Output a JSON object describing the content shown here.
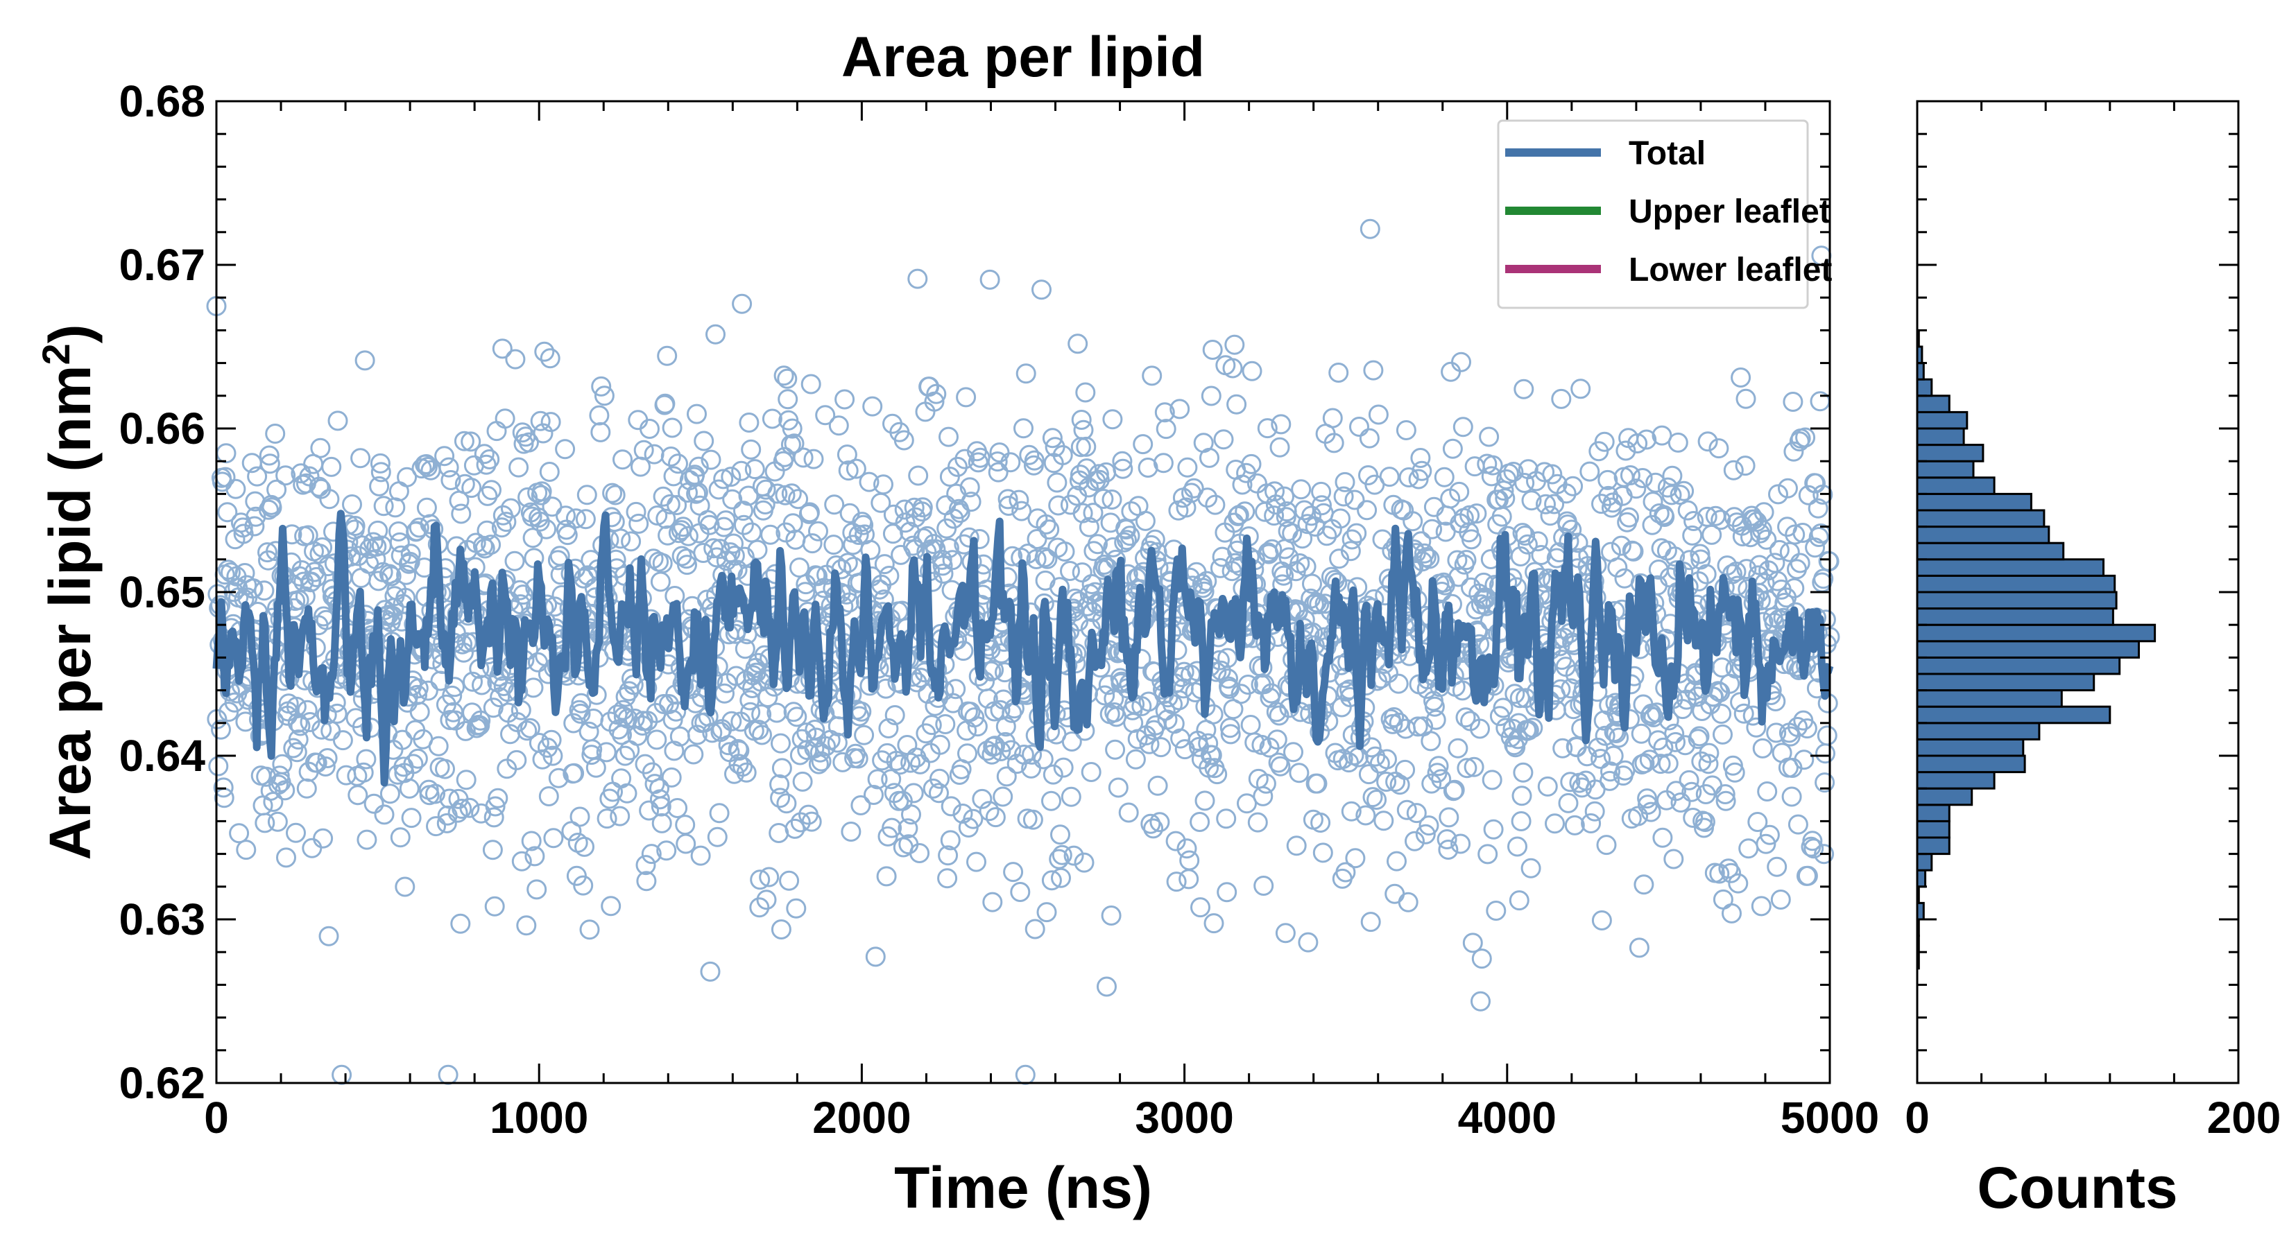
{
  "chart_data": [
    {
      "type": "scatter",
      "title": "Area per lipid",
      "xlabel": "Time (ns)",
      "ylabel": "Area per lipid (nm",
      "ylabel_sup": "2",
      "ylabel_close": ")",
      "xlim": [
        0,
        5000
      ],
      "ylim": [
        0.62,
        0.68
      ],
      "xticks": [
        "0",
        "1000",
        "2000",
        "3000",
        "4000",
        "5000"
      ],
      "yticks": [
        "0.62",
        "0.63",
        "0.64",
        "0.65",
        "0.66",
        "0.67",
        "0.68"
      ],
      "legend_position": "top-right",
      "grid": false,
      "series": [
        {
          "name": "Total",
          "color": "#4474a9",
          "kind": "line",
          "mean": 0.6475,
          "std": 0.0025,
          "n_points": 1000
        },
        {
          "name": "Upper leaflet",
          "color": "#228833",
          "kind": "line"
        },
        {
          "name": "Lower leaflet",
          "color": "#aa3377",
          "kind": "line"
        }
      ],
      "scatter": {
        "color": "#8fb0d3",
        "n_points": 2500,
        "mean": 0.6475,
        "std": 0.0072,
        "marker": "open-circle"
      }
    },
    {
      "type": "bar",
      "orientation": "horizontal",
      "xlabel": "Counts",
      "xlim": [
        0,
        200
      ],
      "xticks": [
        "0",
        "200"
      ],
      "ylim": [
        0.62,
        0.68
      ],
      "color": "#4474a9",
      "bin_width": 0.001,
      "bins": [
        {
          "y": 0.626,
          "count": 0
        },
        {
          "y": 0.627,
          "count": 1
        },
        {
          "y": 0.628,
          "count": 1
        },
        {
          "y": 0.629,
          "count": 1
        },
        {
          "y": 0.63,
          "count": 4
        },
        {
          "y": 0.631,
          "count": 1
        },
        {
          "y": 0.632,
          "count": 5
        },
        {
          "y": 0.633,
          "count": 9
        },
        {
          "y": 0.634,
          "count": 20
        },
        {
          "y": 0.635,
          "count": 20
        },
        {
          "y": 0.636,
          "count": 20
        },
        {
          "y": 0.637,
          "count": 34
        },
        {
          "y": 0.638,
          "count": 48
        },
        {
          "y": 0.639,
          "count": 67
        },
        {
          "y": 0.64,
          "count": 66
        },
        {
          "y": 0.641,
          "count": 76
        },
        {
          "y": 0.642,
          "count": 120
        },
        {
          "y": 0.643,
          "count": 90
        },
        {
          "y": 0.644,
          "count": 110
        },
        {
          "y": 0.645,
          "count": 126
        },
        {
          "y": 0.646,
          "count": 138
        },
        {
          "y": 0.647,
          "count": 148
        },
        {
          "y": 0.648,
          "count": 122
        },
        {
          "y": 0.649,
          "count": 124
        },
        {
          "y": 0.65,
          "count": 123
        },
        {
          "y": 0.651,
          "count": 116
        },
        {
          "y": 0.652,
          "count": 91
        },
        {
          "y": 0.653,
          "count": 82
        },
        {
          "y": 0.654,
          "count": 79
        },
        {
          "y": 0.655,
          "count": 71
        },
        {
          "y": 0.656,
          "count": 48
        },
        {
          "y": 0.657,
          "count": 35
        },
        {
          "y": 0.658,
          "count": 41
        },
        {
          "y": 0.659,
          "count": 29
        },
        {
          "y": 0.66,
          "count": 31
        },
        {
          "y": 0.661,
          "count": 20
        },
        {
          "y": 0.662,
          "count": 9
        },
        {
          "y": 0.663,
          "count": 4
        },
        {
          "y": 0.664,
          "count": 3
        },
        {
          "y": 0.665,
          "count": 1
        }
      ]
    }
  ]
}
